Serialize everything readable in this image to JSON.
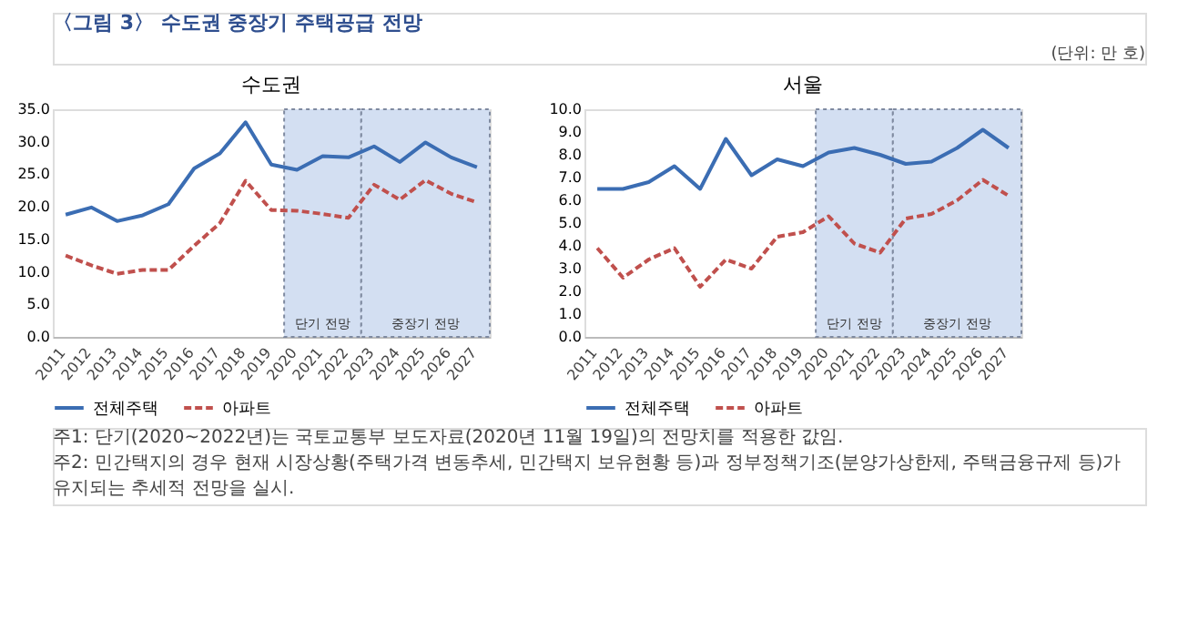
{
  "chart_data": [
    {
      "type": "line",
      "title": "수도권",
      "annotations": [
        "〈그림 3〉 수도권 중장기 주택공급 전망",
        "(단위: 만 호)",
        "주1: 단기(2020~2022년)는 국토교통부 보도자료(2020년 11월 19일)의 전망치를 적용한 값임.",
        "주2: 민간택지의 경우 현재 시장상황(주택가격 변동추세, 민간택지 보유현황 등)과 정부정책기조(분양가상한제, 주택금융규제 등)가 유지되는 추세적 전망을 실시."
      ],
      "categories": [
        "2011",
        "2012",
        "2013",
        "2014",
        "2015",
        "2016",
        "2017",
        "2018",
        "2019",
        "2020",
        "2021",
        "2022",
        "2023",
        "2024",
        "2025",
        "2026",
        "2027"
      ],
      "series": [
        {
          "name": "전체주택",
          "color": "#3b6db3",
          "line_style": "solid",
          "values": [
            18.8,
            19.9,
            17.8,
            18.7,
            20.4,
            25.9,
            28.2,
            33.0,
            26.5,
            25.7,
            27.8,
            27.6,
            29.3,
            26.9,
            29.9,
            27.6,
            26.1
          ]
        },
        {
          "name": "아파트",
          "color": "#c0504d",
          "line_style": "dashed",
          "values": [
            12.5,
            11.0,
            9.7,
            10.3,
            10.3,
            14.0,
            17.5,
            24.0,
            19.5,
            19.4,
            18.9,
            18.3,
            23.4,
            21.1,
            24.1,
            22.0,
            20.7
          ]
        }
      ],
      "ylim": [
        0,
        35
      ],
      "yticks": [
        {
          "value": 0,
          "label": "0.0"
        },
        {
          "value": 5,
          "label": "5.0"
        },
        {
          "value": 10,
          "label": "10.0"
        },
        {
          "value": 15,
          "label": "15.0"
        },
        {
          "value": 20,
          "label": "20.0"
        },
        {
          "value": 25,
          "label": "25.0"
        },
        {
          "value": 30,
          "label": "30.0"
        },
        {
          "value": 35,
          "label": "35.0"
        }
      ],
      "bands": [
        {
          "axis": "x",
          "from": "2020",
          "to": "2022",
          "label": "단기 전망",
          "color": "#d3dff2"
        },
        {
          "axis": "x",
          "from": "2023",
          "to": "2027",
          "label": "중장기 전망",
          "color": "#d3dff2"
        }
      ],
      "grid": false,
      "legend": "bottom"
    },
    {
      "type": "line",
      "title": "서울",
      "categories": [
        "2011",
        "2012",
        "2013",
        "2014",
        "2015",
        "2016",
        "2017",
        "2018",
        "2019",
        "2020",
        "2021",
        "2022",
        "2023",
        "2024",
        "2025",
        "2026",
        "2027"
      ],
      "series": [
        {
          "name": "전체주택",
          "color": "#3b6db3",
          "line_style": "solid",
          "values": [
            6.5,
            6.5,
            6.8,
            7.5,
            6.5,
            8.7,
            7.1,
            7.8,
            7.5,
            8.1,
            8.3,
            8.0,
            7.6,
            7.7,
            8.3,
            9.1,
            8.3
          ]
        },
        {
          "name": "아파트",
          "color": "#c0504d",
          "line_style": "dashed",
          "values": [
            3.9,
            2.6,
            3.4,
            3.9,
            2.2,
            3.4,
            3.0,
            4.4,
            4.6,
            5.3,
            4.1,
            3.7,
            5.2,
            5.4,
            6.0,
            6.9,
            6.2
          ]
        }
      ],
      "ylim": [
        0,
        10
      ],
      "yticks": [
        {
          "value": 0,
          "label": "0.0"
        },
        {
          "value": 1,
          "label": "1.0"
        },
        {
          "value": 2,
          "label": "2.0"
        },
        {
          "value": 3,
          "label": "3.0"
        },
        {
          "value": 4,
          "label": "4.0"
        },
        {
          "value": 5,
          "label": "5.0"
        },
        {
          "value": 6,
          "label": "6.0"
        },
        {
          "value": 7,
          "label": "7.0"
        },
        {
          "value": 8,
          "label": "8.0"
        },
        {
          "value": 9,
          "label": "9.0"
        },
        {
          "value": 10,
          "label": "10.0"
        }
      ],
      "bands": [
        {
          "axis": "x",
          "from": "2020",
          "to": "2022",
          "label": "단기 전망",
          "color": "#d3dff2"
        },
        {
          "axis": "x",
          "from": "2023",
          "to": "2027",
          "label": "중장기 전망",
          "color": "#d3dff2"
        }
      ],
      "grid": false,
      "legend": "bottom"
    }
  ]
}
